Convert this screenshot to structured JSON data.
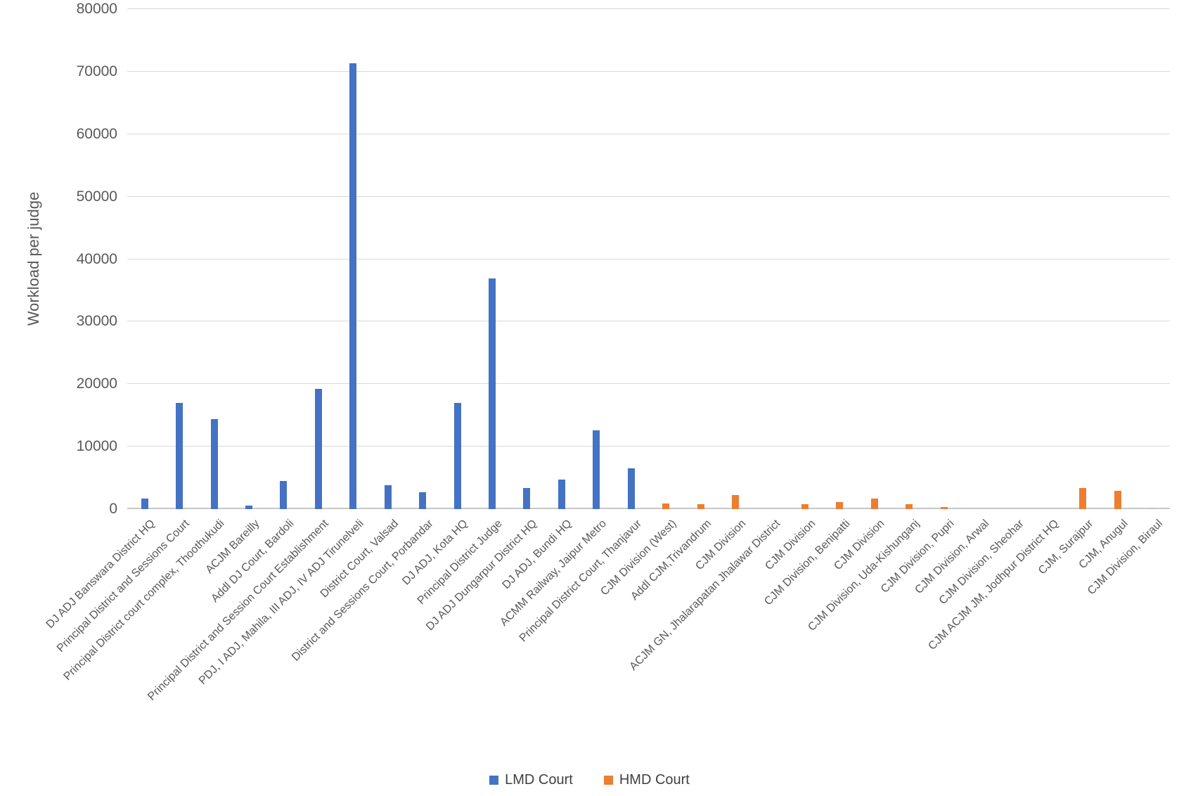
{
  "chart_data": {
    "type": "bar",
    "title": "",
    "xlabel": "",
    "ylabel": "Workload per judge",
    "ylim": [
      0,
      80000
    ],
    "y_ticks": [
      0,
      10000,
      20000,
      30000,
      40000,
      50000,
      60000,
      70000,
      80000
    ],
    "grid": "horizontal",
    "legend_position": "bottom",
    "series": [
      {
        "name": "LMD Court",
        "color": "#4472C4"
      },
      {
        "name": "HMD Court",
        "color": "#ED7D31"
      }
    ],
    "points": [
      {
        "category": "DJ ADJ Banswara District HQ",
        "series": "LMD Court",
        "value": 1700
      },
      {
        "category": "Principal District and Sessions Court",
        "series": "LMD Court",
        "value": 17000
      },
      {
        "category": "Principal District court complex, Thoothukudi",
        "series": "LMD Court",
        "value": 14400
      },
      {
        "category": "ACJM Bareilly",
        "series": "LMD Court",
        "value": 550
      },
      {
        "category": "Addl DJ Court, Bardoli",
        "series": "LMD Court",
        "value": 4500
      },
      {
        "category": "Principal District and Session Court Establishment",
        "series": "LMD Court",
        "value": 19200
      },
      {
        "category": "PDJ, I ADJ, Mahila, III ADJ, IV ADJ Tirunelveli",
        "series": "LMD Court",
        "value": 71300
      },
      {
        "category": "District Court, Valsad",
        "series": "LMD Court",
        "value": 3800
      },
      {
        "category": "District and Sessions Court, Porbandar",
        "series": "LMD Court",
        "value": 2700
      },
      {
        "category": "DJ ADJ, Kota HQ",
        "series": "LMD Court",
        "value": 17000
      },
      {
        "category": "Principal District Judge",
        "series": "LMD Court",
        "value": 36900
      },
      {
        "category": "DJ ADJ Dungarpur District HQ",
        "series": "LMD Court",
        "value": 3400
      },
      {
        "category": "DJ ADJ, Bundi HQ",
        "series": "LMD Court",
        "value": 4700
      },
      {
        "category": "ACMM Railway, Jaipur Metro",
        "series": "LMD Court",
        "value": 12600
      },
      {
        "category": "Principal District Court, Thanjavur",
        "series": "LMD Court",
        "value": 6500
      },
      {
        "category": "CJM Division (West)",
        "series": "HMD Court",
        "value": 850
      },
      {
        "category": "Addl CJM,Trivandrum",
        "series": "HMD Court",
        "value": 800
      },
      {
        "category": "CJM Division",
        "series": "HMD Court",
        "value": 2250
      },
      {
        "category": "ACJM GN, Jhalarapatan Jhalawar District",
        "series": "HMD Court",
        "value": 0
      },
      {
        "category": "CJM Division",
        "series": "HMD Court",
        "value": 750
      },
      {
        "category": "CJM Division, Benipatti",
        "series": "HMD Court",
        "value": 1100
      },
      {
        "category": "CJM Division",
        "series": "HMD Court",
        "value": 1700
      },
      {
        "category": "CJM Division, Uda-Kishunganj",
        "series": "HMD Court",
        "value": 800
      },
      {
        "category": "CJM Division, Pupri",
        "series": "HMD Court",
        "value": 350
      },
      {
        "category": "CJM Division, Arwal",
        "series": "HMD Court",
        "value": 0
      },
      {
        "category": "CJM Division, Sheohar",
        "series": "HMD Court",
        "value": 0
      },
      {
        "category": "CJM ACJM JM, Jodhpur District HQ",
        "series": "HMD Court",
        "value": 0
      },
      {
        "category": "CJM, Surajpur",
        "series": "HMD Court",
        "value": 3400
      },
      {
        "category": "CJM, Anugul",
        "series": "HMD Court",
        "value": 2900
      },
      {
        "category": "CJM Division, Biraul",
        "series": "HMD Court",
        "value": 250,
        "color": "#BFBFBF"
      }
    ]
  }
}
